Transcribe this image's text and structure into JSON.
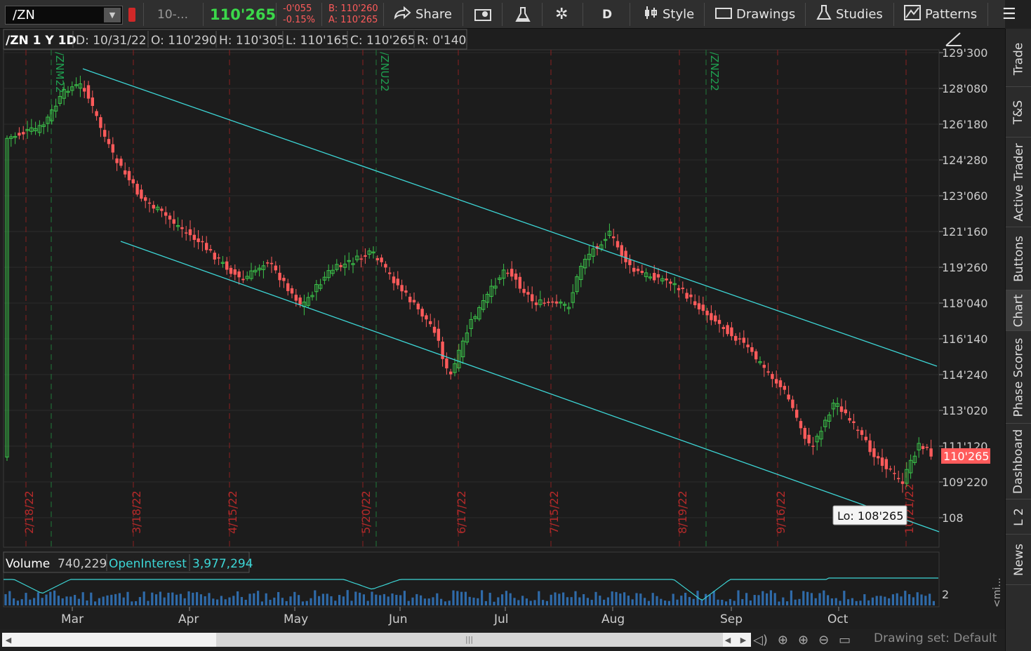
{
  "toolbar": {
    "symbol": "/ZN",
    "description": "10-...",
    "last_price": "110'265",
    "change": "-0'055",
    "change_pct": "-0.15%",
    "bid": "B: 110'260",
    "ask": "A: 110'265",
    "share_label": "Share",
    "aggregation": "D",
    "style_label": "Style",
    "drawings_label": "Drawings",
    "studies_label": "Studies",
    "patterns_label": "Patterns",
    "colors": {
      "positive": "#3bd84a",
      "negative": "#ff5b5b",
      "accent": "#3dd6d6"
    }
  },
  "chart_header": {
    "title": "/ZN 1 Y 1D",
    "date": "D: 10/31/22",
    "open": "O: 110'290",
    "high": "H: 110'305",
    "low": "L: 110'165",
    "close": "C: 110'265",
    "range": "R: 0'140"
  },
  "price_axis": {
    "labels": [
      "129'300",
      "128'080",
      "126'180",
      "124'280",
      "123'060",
      "121'160",
      "119'260",
      "118'040",
      "116'140",
      "114'240",
      "113'020",
      "111'120",
      "109'220",
      "108"
    ],
    "current_price": "110'265"
  },
  "time_axis": {
    "months": [
      "Mar",
      "Apr",
      "May",
      "Jun",
      "Jul",
      "Aug",
      "Sep",
      "Oct"
    ]
  },
  "expiration_dates": [
    "2/18/22",
    "3/18/22",
    "4/15/22",
    "5/20/22",
    "6/17/22",
    "7/15/22",
    "8/19/22",
    "9/16/22",
    "10/21/22"
  ],
  "contract_rolls": [
    "/ZNM22",
    "/ZNU22",
    "/ZNZ22"
  ],
  "lowest_low_label": "Lo: 108'265",
  "lower_pane": {
    "volume_label": "Volume",
    "volume_value": "740,229",
    "oi_label": "OpenInterest",
    "oi_value": "3,977,294",
    "axis_label": "2",
    "min_label": "<mi..."
  },
  "sidebar_tabs": [
    "Trade",
    "T&S",
    "Active Trader",
    "Buttons",
    "Chart",
    "Phase Scores",
    "Dashboard",
    "L 2",
    "News"
  ],
  "sidebar_active": "Chart",
  "status": {
    "drawing_set": "Drawing set: Default"
  },
  "chart_data": {
    "type": "candlestick",
    "symbol": "/ZN",
    "aggregation": "1 Y 1D",
    "y_axis_labels": [
      "129'300",
      "128'080",
      "126'180",
      "124'280",
      "123'060",
      "121'160",
      "119'260",
      "118'040",
      "116'140",
      "114'240",
      "113'020",
      "111'120",
      "109'220",
      "108"
    ],
    "x_axis_months": [
      "Mar",
      "Apr",
      "May",
      "Jun",
      "Jul",
      "Aug",
      "Sep",
      "Oct"
    ],
    "last": "110'265",
    "low": "108'265",
    "trend_channel": "descending",
    "series": [
      {
        "name": "Volume",
        "last": "740,229"
      },
      {
        "name": "OpenInterest",
        "last": "3,977,294"
      }
    ]
  }
}
